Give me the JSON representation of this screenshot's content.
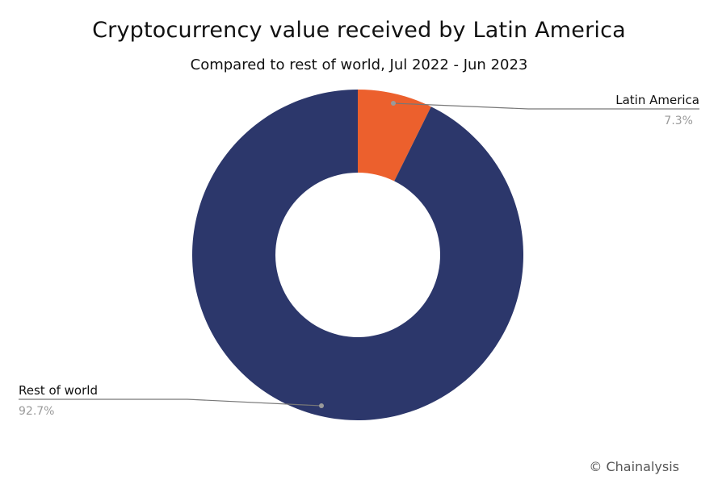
{
  "chart_data": {
    "type": "pie",
    "donut": true,
    "title": "Cryptocurrency value received by Latin America",
    "subtitle": "Compared to rest of world, Jul 2022 - Jun 2023",
    "slices": [
      {
        "label": "Latin America",
        "value": 7.3,
        "value_label": "7.3%",
        "color": "#ec602d"
      },
      {
        "label": "Rest of world",
        "value": 92.7,
        "value_label": "92.7%",
        "color": "#2c376b"
      }
    ]
  },
  "credit": "© Chainalysis"
}
